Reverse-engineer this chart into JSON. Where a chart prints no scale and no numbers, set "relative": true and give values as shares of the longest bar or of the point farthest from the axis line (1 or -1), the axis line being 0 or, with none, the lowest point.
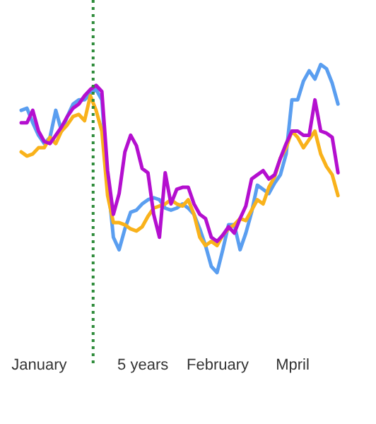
{
  "chart_data": {
    "type": "line",
    "relative": true,
    "grid": false,
    "line_style": "solid",
    "marker": "none",
    "categories": [
      null,
      null,
      null,
      "January",
      null,
      null,
      null,
      null,
      null,
      null,
      null,
      null,
      null,
      null,
      null,
      null,
      null,
      null,
      null,
      null,
      null,
      "5 years",
      null,
      null,
      null,
      null,
      null,
      null,
      null,
      null,
      null,
      null,
      null,
      null,
      "February",
      null,
      null,
      null,
      null,
      null,
      null,
      null,
      null,
      null,
      null,
      null,
      null,
      "Mpril",
      null,
      null,
      null,
      null,
      null,
      null,
      null,
      null
    ],
    "series": [
      {
        "color": "#5a9ef0",
        "values": [
          0.78,
          0.79,
          0.72,
          0.66,
          0.62,
          0.65,
          0.78,
          0.68,
          0.75,
          0.81,
          0.83,
          0.83,
          0.86,
          0.88,
          0.83,
          0.45,
          0.17,
          0.11,
          0.21,
          0.29,
          0.3,
          0.33,
          0.35,
          0.36,
          0.35,
          0.31,
          0.3,
          0.31,
          0.33,
          0.31,
          0.28,
          0.21,
          0.13,
          0.03,
          0,
          0.11,
          0.23,
          0.23,
          0.11,
          0.19,
          0.29,
          0.42,
          0.4,
          0.38,
          0.43,
          0.47,
          0.57,
          0.83,
          0.83,
          0.92,
          0.97,
          0.93,
          1,
          0.98,
          0.91,
          0.81
        ]
      },
      {
        "color": "#f9b21b",
        "values": [
          0.58,
          0.56,
          0.57,
          0.6,
          0.6,
          0.65,
          0.62,
          0.68,
          0.71,
          0.75,
          0.76,
          0.73,
          0.85,
          0.78,
          0.68,
          0.37,
          0.24,
          0.24,
          0.23,
          0.21,
          0.2,
          0.22,
          0.27,
          0.31,
          0.32,
          0.33,
          0.35,
          0.33,
          0.32,
          0.35,
          0.28,
          0.17,
          0.13,
          0.15,
          0.13,
          0.18,
          0.21,
          0.23,
          0.26,
          0.25,
          0.3,
          0.35,
          0.33,
          0.41,
          0.46,
          0.55,
          0.6,
          0.68,
          0.65,
          0.6,
          0.64,
          0.68,
          0.57,
          0.51,
          0.47,
          0.37
        ]
      },
      {
        "color": "#b40fcf",
        "values": [
          0.72,
          0.72,
          0.78,
          0.68,
          0.63,
          0.62,
          0.66,
          0.7,
          0.75,
          0.79,
          0.81,
          0.85,
          0.88,
          0.9,
          0.87,
          0.49,
          0.28,
          0.38,
          0.58,
          0.66,
          0.61,
          0.5,
          0.48,
          0.28,
          0.17,
          0.48,
          0.33,
          0.4,
          0.41,
          0.41,
          0.33,
          0.28,
          0.26,
          0.17,
          0.15,
          0.18,
          0.22,
          0.19,
          0.26,
          0.32,
          0.45,
          0.47,
          0.49,
          0.45,
          0.47,
          0.55,
          0.62,
          0.68,
          0.68,
          0.66,
          0.66,
          0.83,
          0.68,
          0.67,
          0.65,
          0.48
        ]
      }
    ]
  }
}
